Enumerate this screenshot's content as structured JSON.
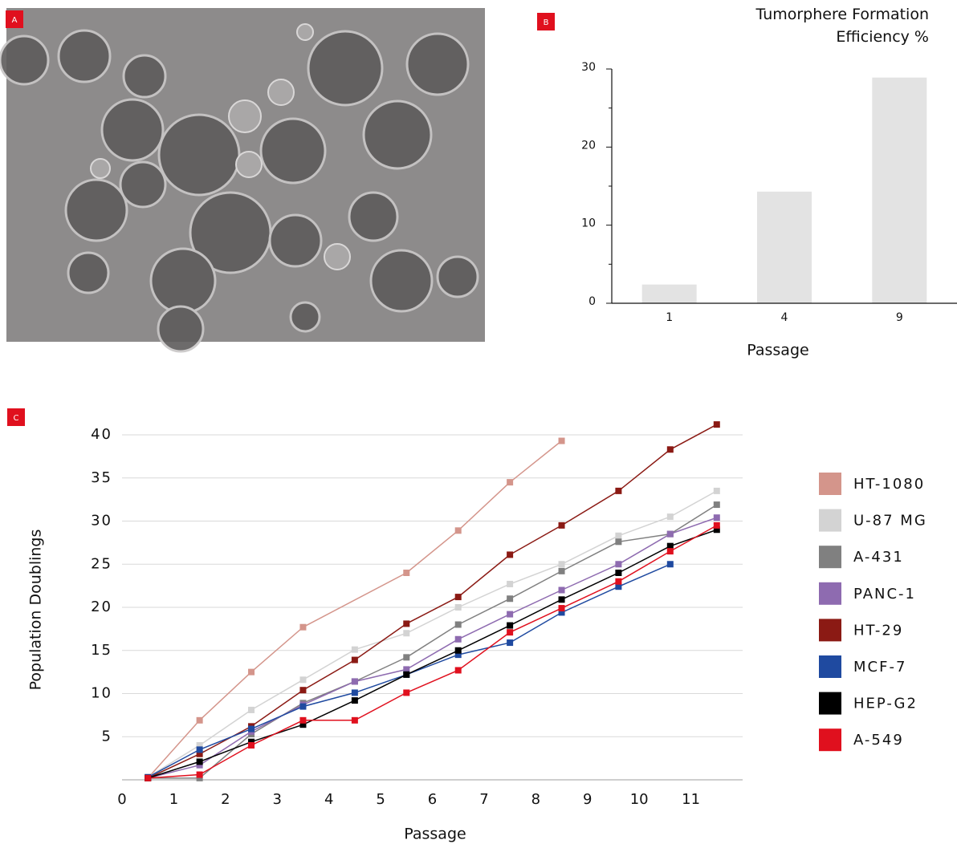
{
  "panel_labels": [
    "A",
    "B",
    "C"
  ],
  "chart_data": [
    {
      "type": "bar",
      "title": "Tumorphere Formation Efficiency %",
      "x_label": "Passage",
      "categories": [
        "1",
        "4",
        "9"
      ],
      "values": [
        2.4,
        14.3,
        28.9
      ],
      "color": "#e3e3e3",
      "ylim": [
        0,
        30
      ],
      "yticks": [
        0,
        10,
        20,
        30
      ],
      "minor_yticks": [
        5,
        15,
        25
      ]
    },
    {
      "type": "line",
      "x_label": "Passage",
      "y_label": "Population Doublings",
      "xlim": [
        0,
        12
      ],
      "xticks": [
        0,
        1,
        2,
        3,
        4,
        5,
        6,
        7,
        8,
        9,
        10,
        11
      ],
      "ylim": [
        0,
        40
      ],
      "yticks": [
        5,
        10,
        15,
        20,
        25,
        30,
        35,
        40
      ],
      "grid": true,
      "legend": "right",
      "series": [
        {
          "name": "HT-1080",
          "color": "#d4958b",
          "x": [
            0.5,
            1.5,
            2.5,
            3.5,
            5.5,
            6.5,
            7.5,
            8.5
          ],
          "values": [
            0.2,
            6.9,
            12.5,
            17.7,
            24.0,
            28.9,
            34.5,
            39.3
          ]
        },
        {
          "name": "U-87 MG",
          "color": "#d3d3d3",
          "x": [
            0.5,
            1.5,
            2.5,
            3.5,
            4.5,
            5.5,
            6.5,
            7.5,
            8.5,
            9.6,
            10.6,
            11.5
          ],
          "values": [
            0.3,
            4.0,
            8.1,
            11.6,
            15.1,
            17.0,
            20.0,
            22.7,
            25.0,
            28.3,
            30.5,
            33.5
          ]
        },
        {
          "name": "A-431",
          "color": "#808080",
          "x": [
            0.5,
            1.5,
            2.5,
            3.5,
            4.5,
            5.5,
            6.5,
            7.5,
            8.5,
            9.6,
            10.6,
            11.5
          ],
          "values": [
            0.2,
            0.2,
            5.3,
            8.9,
            11.4,
            14.2,
            18.0,
            21.0,
            24.2,
            27.6,
            28.5,
            31.9
          ]
        },
        {
          "name": "PANC-1",
          "color": "#8e6bb0",
          "x": [
            0.5,
            1.5,
            2.5,
            3.5,
            4.5,
            5.5,
            6.5,
            7.5,
            8.5,
            9.6,
            10.6,
            11.5
          ],
          "values": [
            0.2,
            1.7,
            5.6,
            8.7,
            11.4,
            12.8,
            16.3,
            19.2,
            22.0,
            25.0,
            28.5,
            30.4
          ]
        },
        {
          "name": "HT-29",
          "color": "#8b1a14",
          "x": [
            0.5,
            1.5,
            2.5,
            3.5,
            4.5,
            5.5,
            6.5,
            7.5,
            8.5,
            9.6,
            10.6,
            11.5
          ],
          "values": [
            0.2,
            3.0,
            6.2,
            10.4,
            13.9,
            18.1,
            21.2,
            26.1,
            29.5,
            33.5,
            38.3,
            41.2
          ]
        },
        {
          "name": "MCF-7",
          "color": "#1f4aa0",
          "x": [
            0.5,
            1.5,
            2.5,
            3.5,
            4.5,
            5.5,
            6.5,
            7.5,
            8.5,
            9.6,
            10.6
          ],
          "values": [
            0.3,
            3.5,
            5.9,
            8.5,
            10.1,
            12.2,
            14.5,
            15.9,
            19.4,
            22.4,
            25.0
          ]
        },
        {
          "name": "HEP-G2",
          "color": "#000000",
          "x": [
            0.5,
            1.5,
            2.5,
            3.5,
            4.5,
            5.5,
            6.5,
            7.5,
            8.5,
            9.6,
            10.6,
            11.5
          ],
          "values": [
            0.2,
            2.1,
            4.4,
            6.4,
            9.2,
            12.2,
            15.0,
            17.9,
            20.9,
            24.0,
            27.1,
            29.0
          ]
        },
        {
          "name": "A-549",
          "color": "#e0101e",
          "x": [
            0.5,
            1.5,
            2.5,
            3.5,
            4.5,
            5.5,
            6.5,
            7.5,
            8.5,
            9.6,
            10.6,
            11.5
          ],
          "values": [
            0.2,
            0.6,
            4.0,
            6.9,
            6.9,
            10.1,
            12.7,
            17.1,
            19.9,
            23.0,
            26.5,
            29.5
          ]
        }
      ]
    }
  ]
}
